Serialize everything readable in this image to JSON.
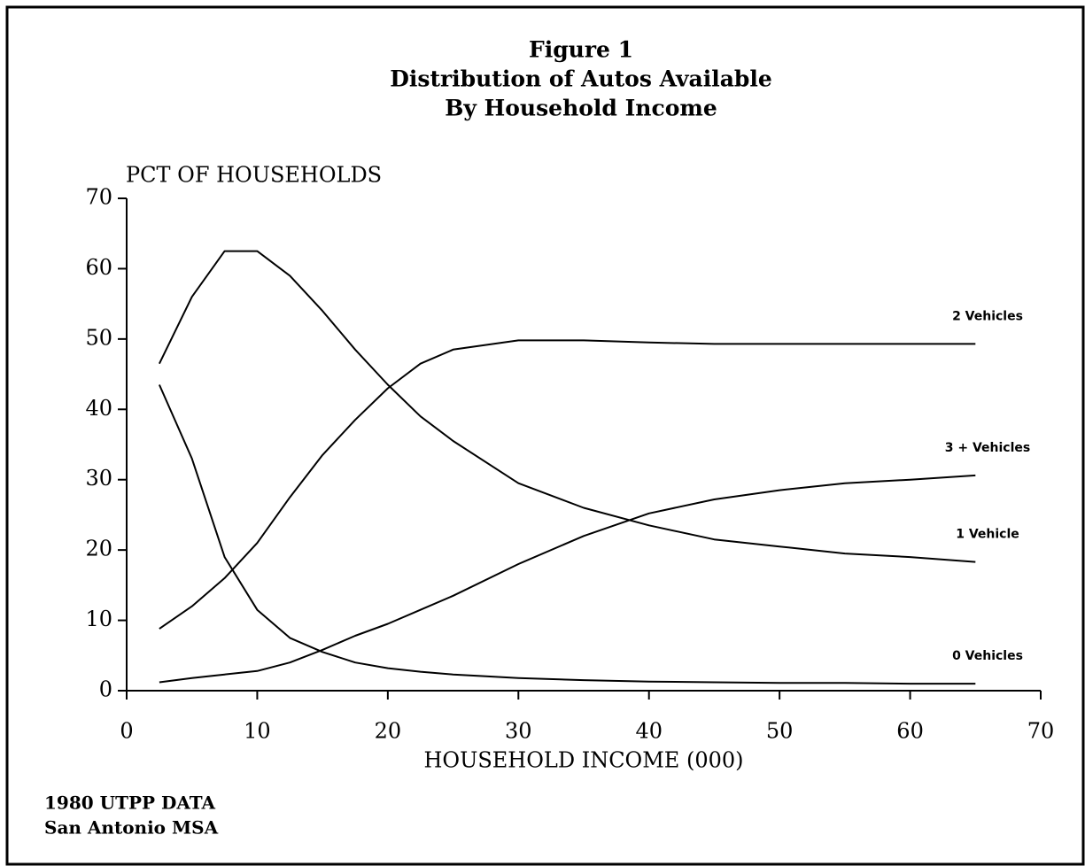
{
  "chart_data": {
    "type": "line",
    "title": [
      "Figure 1",
      "Distribution of Autos Available",
      "By Household Income"
    ],
    "ylabel": "PCT OF HOUSEHOLDS",
    "xlabel": "HOUSEHOLD INCOME (000)",
    "notes": [
      "1980 UTPP DATA",
      "San Antonio MSA"
    ],
    "x": [
      2.5,
      5,
      7.5,
      10,
      12.5,
      15,
      17.5,
      20,
      22.5,
      25,
      30,
      35,
      40,
      45,
      50,
      55,
      60,
      65
    ],
    "xlim": [
      0,
      70
    ],
    "xticks": [
      0,
      10,
      20,
      30,
      40,
      50,
      60,
      70
    ],
    "ylim": [
      0,
      70
    ],
    "yticks": [
      0,
      10,
      20,
      30,
      40,
      50,
      60,
      70
    ],
    "series": [
      {
        "name": "2 Vehicles",
        "color": "#000000",
        "values": [
          8.8,
          12,
          16,
          21,
          27.5,
          33.5,
          38.5,
          43,
          46.5,
          48.5,
          49.8,
          49.8,
          49.5,
          49.3,
          49.3,
          49.3,
          49.3,
          49.3
        ]
      },
      {
        "name": "3 + Vehicles",
        "color": "#000000",
        "values": [
          1.2,
          1.8,
          2.3,
          2.8,
          4,
          5.8,
          7.8,
          9.5,
          11.5,
          13.5,
          18,
          22,
          25.2,
          27.2,
          28.5,
          29.5,
          30,
          30.6
        ]
      },
      {
        "name": "1 Vehicle",
        "color": "#000000",
        "values": [
          46.5,
          56,
          62.5,
          62.5,
          59,
          54,
          48.5,
          43.5,
          39,
          35.5,
          29.5,
          26,
          23.5,
          21.5,
          20.5,
          19.5,
          19,
          18.3
        ]
      },
      {
        "name": "0 Vehicles",
        "color": "#000000",
        "values": [
          43.5,
          33,
          19,
          11.5,
          7.5,
          5.5,
          4,
          3.2,
          2.7,
          2.3,
          1.8,
          1.5,
          1.3,
          1.2,
          1.1,
          1.1,
          1.0,
          1.0
        ]
      }
    ]
  }
}
